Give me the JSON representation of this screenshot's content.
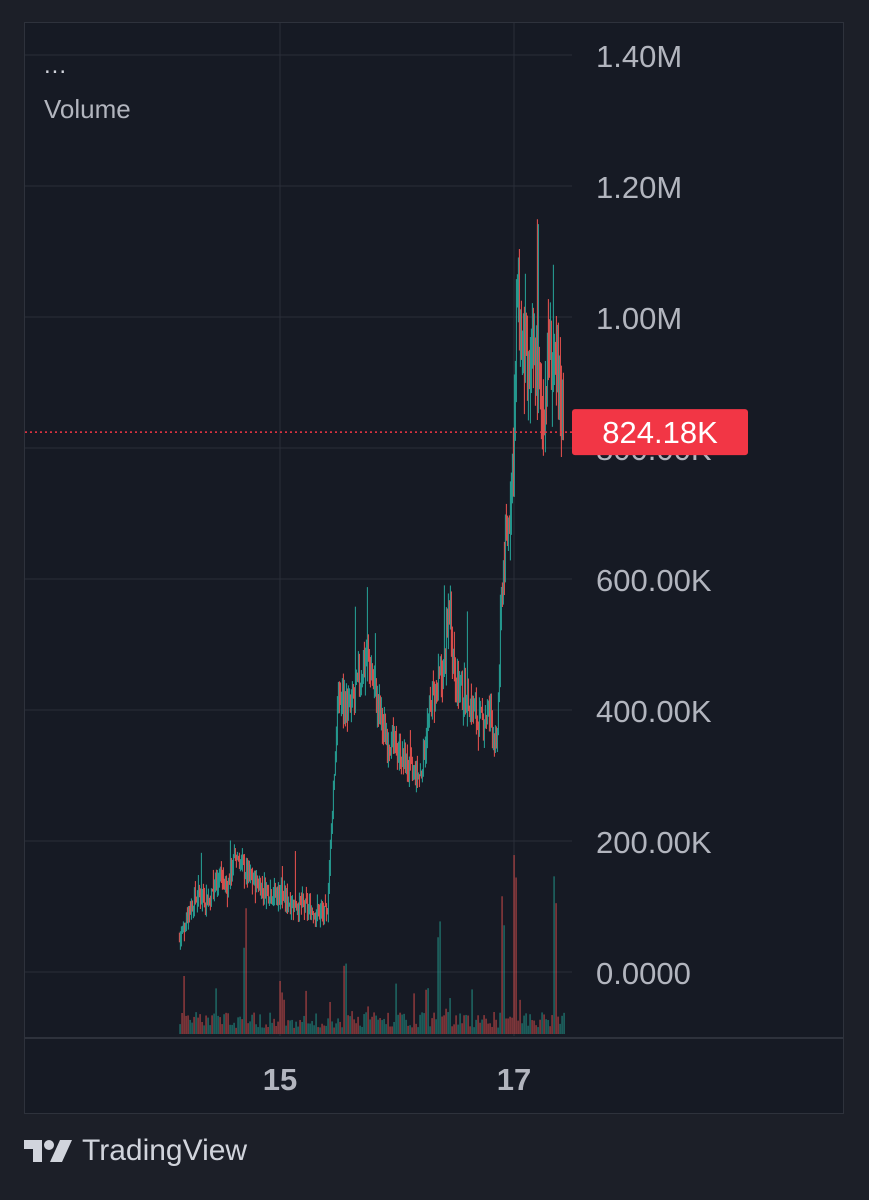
{
  "legend": {
    "menu": "...",
    "series_label": "Volume"
  },
  "brand": {
    "name": "TradingView",
    "logo": "tradingview-logo"
  },
  "colors": {
    "background": "#161a24",
    "grid": "#2a2e39",
    "up": "#26a69a",
    "down": "#ef5350",
    "last_price_bg": "#f23645",
    "axis_text": "#b2b5be"
  },
  "chart_data": {
    "type": "candlestick",
    "title": "",
    "xlabel": "",
    "ylabel": "",
    "ylim": [
      -100000,
      1400000
    ],
    "y_ticks": [
      {
        "value": 1400000,
        "label": "1.40M"
      },
      {
        "value": 1200000,
        "label": "1.20M"
      },
      {
        "value": 1000000,
        "label": "1.00M"
      },
      {
        "value": 800000,
        "label": "800.00K"
      },
      {
        "value": 600000,
        "label": "600.00K"
      },
      {
        "value": 400000,
        "label": "400.00K"
      },
      {
        "value": 200000,
        "label": "200.00K"
      },
      {
        "value": 0,
        "label": "0.0000"
      }
    ],
    "x_ticks": [
      {
        "value": 15,
        "label": "15"
      },
      {
        "value": 17,
        "label": "17"
      }
    ],
    "last_price": {
      "value": 824180,
      "label": "824.18K"
    },
    "price_path": [
      [
        14.14,
        50000
      ],
      [
        14.22,
        95000
      ],
      [
        14.3,
        120000
      ],
      [
        14.4,
        110000
      ],
      [
        14.48,
        150000
      ],
      [
        14.55,
        130000
      ],
      [
        14.62,
        180000
      ],
      [
        14.68,
        160000
      ],
      [
        14.75,
        140000
      ],
      [
        14.85,
        130000
      ],
      [
        14.95,
        120000
      ],
      [
        15.05,
        110000
      ],
      [
        15.2,
        100000
      ],
      [
        15.4,
        85000
      ],
      [
        15.45,
        260000
      ],
      [
        15.5,
        420000
      ],
      [
        15.6,
        400000
      ],
      [
        15.7,
        460000
      ],
      [
        15.75,
        480000
      ],
      [
        15.82,
        420000
      ],
      [
        15.9,
        360000
      ],
      [
        16.0,
        340000
      ],
      [
        16.1,
        310000
      ],
      [
        16.2,
        300000
      ],
      [
        16.3,
        420000
      ],
      [
        16.4,
        460000
      ],
      [
        16.45,
        560000
      ],
      [
        16.5,
        440000
      ],
      [
        16.6,
        420000
      ],
      [
        16.7,
        380000
      ],
      [
        16.8,
        400000
      ],
      [
        16.85,
        330000
      ],
      [
        16.9,
        600000
      ],
      [
        16.95,
        680000
      ],
      [
        17.0,
        820000
      ],
      [
        17.03,
        1050000
      ],
      [
        17.06,
        960000
      ],
      [
        17.12,
        900000
      ],
      [
        17.18,
        930000
      ],
      [
        17.25,
        850000
      ],
      [
        17.3,
        960000
      ],
      [
        17.35,
        900000
      ],
      [
        17.4,
        880000
      ],
      [
        17.42,
        850000
      ]
    ],
    "volume_peaks": [
      {
        "x": 14.7,
        "value": 0.6
      },
      {
        "x": 15.0,
        "value": 0.3
      },
      {
        "x": 15.55,
        "value": 0.5
      },
      {
        "x": 16.35,
        "value": 0.6
      },
      {
        "x": 16.9,
        "value": 0.8
      },
      {
        "x": 17.0,
        "value": 1.0
      },
      {
        "x": 17.35,
        "value": 0.85
      }
    ]
  }
}
